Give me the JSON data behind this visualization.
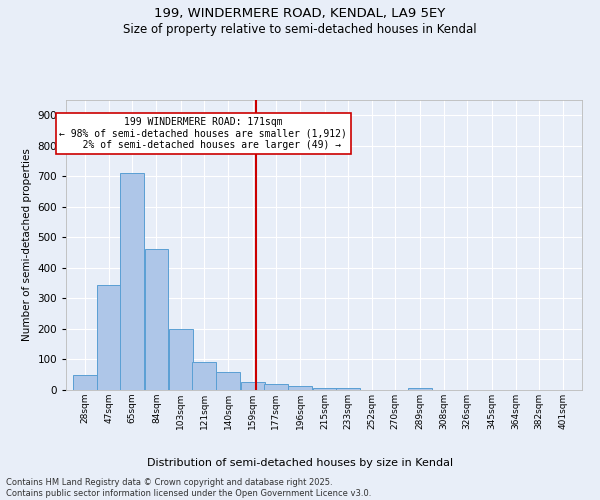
{
  "title1": "199, WINDERMERE ROAD, KENDAL, LA9 5EY",
  "title2": "Size of property relative to semi-detached houses in Kendal",
  "xlabel": "Distribution of semi-detached houses by size in Kendal",
  "ylabel": "Number of semi-detached properties",
  "bin_labels": [
    "28sqm",
    "47sqm",
    "65sqm",
    "84sqm",
    "103sqm",
    "121sqm",
    "140sqm",
    "159sqm",
    "177sqm",
    "196sqm",
    "215sqm",
    "233sqm",
    "252sqm",
    "270sqm",
    "289sqm",
    "308sqm",
    "326sqm",
    "345sqm",
    "364sqm",
    "382sqm",
    "401sqm"
  ],
  "bar_values": [
    48,
    345,
    712,
    463,
    200,
    93,
    59,
    25,
    20,
    14,
    8,
    5,
    0,
    0,
    5,
    0,
    0,
    0,
    0,
    0,
    0
  ],
  "bar_left_edges": [
    28,
    47,
    65,
    84,
    103,
    121,
    140,
    159,
    177,
    196,
    215,
    233,
    252,
    270,
    289,
    308,
    326,
    345,
    364,
    382,
    401
  ],
  "bin_width": 19,
  "property_value": 171,
  "property_label": "199 WINDERMERE ROAD: 171sqm",
  "pct_smaller": 98,
  "n_smaller": 1912,
  "pct_larger": 2,
  "n_larger": 49,
  "bar_color": "#aec6e8",
  "bar_edge_color": "#5a9fd4",
  "line_color": "#cc0000",
  "box_edge_color": "#cc0000",
  "bg_color": "#e8eef8",
  "grid_color": "#ffffff",
  "ylim": [
    0,
    950
  ],
  "yticks": [
    0,
    100,
    200,
    300,
    400,
    500,
    600,
    700,
    800,
    900
  ],
  "footer": "Contains HM Land Registry data © Crown copyright and database right 2025.\nContains public sector information licensed under the Open Government Licence v3.0."
}
